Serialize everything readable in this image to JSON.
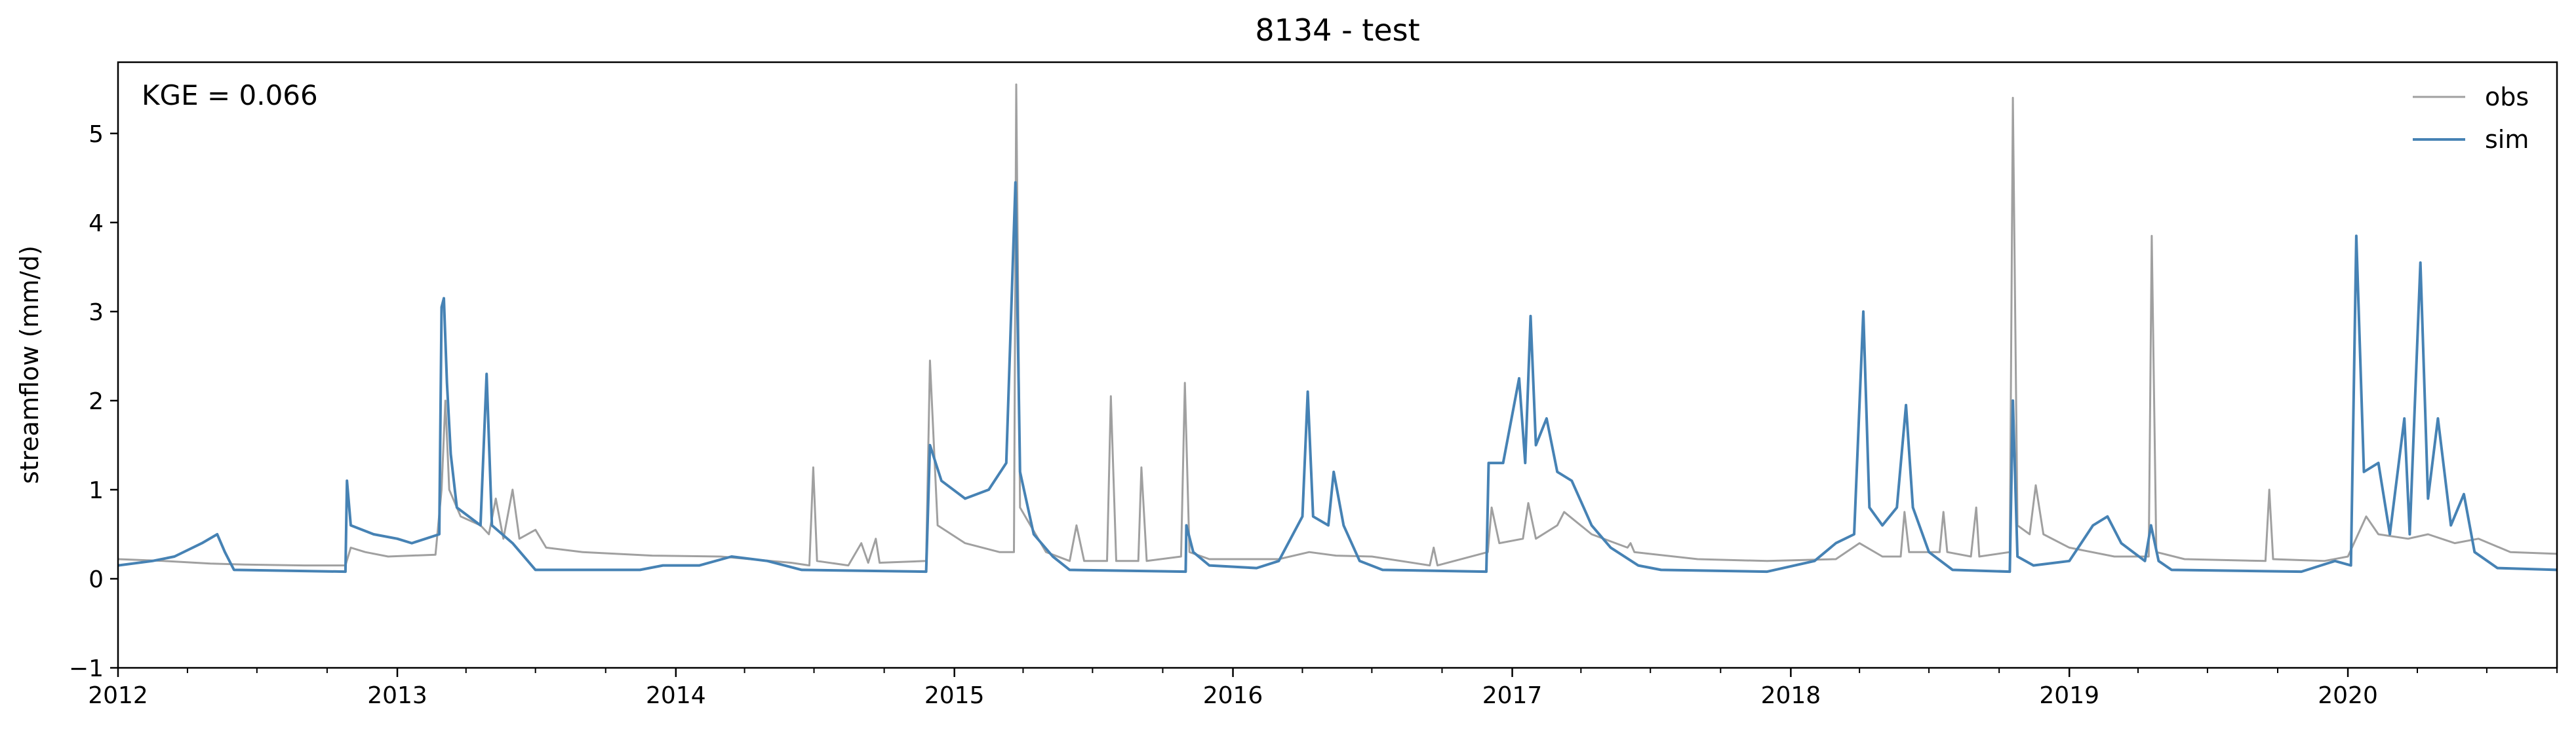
{
  "chart_data": {
    "type": "line",
    "title": "8134 - test",
    "xlabel": "",
    "ylabel": "streamflow (mm/d)",
    "annotation": "KGE = 0.066",
    "xlim": [
      "2012-01-01",
      "2020-10-01"
    ],
    "ylim": [
      -1,
      5.8
    ],
    "x_ticks": [
      "2012",
      "2013",
      "2014",
      "2015",
      "2016",
      "2017",
      "2018",
      "2019",
      "2020"
    ],
    "y_ticks": [
      "−1",
      "0",
      "1",
      "2",
      "3",
      "4",
      "5"
    ],
    "grid": false,
    "legend_position": "top-right",
    "series": [
      {
        "name": "obs",
        "color": "#a0a0a0",
        "points": [
          [
            "2012-01-01",
            0.22
          ],
          [
            "2012-03-01",
            0.2
          ],
          [
            "2012-05-01",
            0.17
          ],
          [
            "2012-06-15",
            0.16
          ],
          [
            "2012-09-01",
            0.15
          ],
          [
            "2012-10-25",
            0.15
          ],
          [
            "2012-11-01",
            0.35
          ],
          [
            "2012-11-20",
            0.3
          ],
          [
            "2012-12-20",
            0.25
          ],
          [
            "2013-02-20",
            0.27
          ],
          [
            "2013-02-28",
            1.0
          ],
          [
            "2013-03-05",
            2.0
          ],
          [
            "2013-03-10",
            1.0
          ],
          [
            "2013-03-25",
            0.7
          ],
          [
            "2013-04-20",
            0.6
          ],
          [
            "2013-05-01",
            0.5
          ],
          [
            "2013-05-10",
            0.9
          ],
          [
            "2013-05-20",
            0.45
          ],
          [
            "2013-06-01",
            1.0
          ],
          [
            "2013-06-10",
            0.45
          ],
          [
            "2013-07-01",
            0.55
          ],
          [
            "2013-07-15",
            0.35
          ],
          [
            "2013-09-01",
            0.3
          ],
          [
            "2013-12-01",
            0.26
          ],
          [
            "2014-03-01",
            0.25
          ],
          [
            "2014-06-01",
            0.18
          ],
          [
            "2014-06-25",
            0.15
          ],
          [
            "2014-06-30",
            1.25
          ],
          [
            "2014-07-05",
            0.2
          ],
          [
            "2014-08-15",
            0.15
          ],
          [
            "2014-09-01",
            0.4
          ],
          [
            "2014-09-10",
            0.18
          ],
          [
            "2014-09-20",
            0.45
          ],
          [
            "2014-09-25",
            0.18
          ],
          [
            "2014-11-25",
            0.2
          ],
          [
            "2014-11-30",
            2.45
          ],
          [
            "2014-12-10",
            0.6
          ],
          [
            "2015-01-15",
            0.4
          ],
          [
            "2015-03-01",
            0.3
          ],
          [
            "2015-03-20",
            0.3
          ],
          [
            "2015-03-23",
            5.55
          ],
          [
            "2015-03-28",
            0.8
          ],
          [
            "2015-05-01",
            0.3
          ],
          [
            "2015-06-01",
            0.2
          ],
          [
            "2015-06-10",
            0.6
          ],
          [
            "2015-06-20",
            0.2
          ],
          [
            "2015-07-20",
            0.2
          ],
          [
            "2015-07-25",
            2.05
          ],
          [
            "2015-08-01",
            0.2
          ],
          [
            "2015-08-30",
            0.2
          ],
          [
            "2015-09-03",
            1.25
          ],
          [
            "2015-09-10",
            0.2
          ],
          [
            "2015-10-25",
            0.25
          ],
          [
            "2015-10-30",
            2.2
          ],
          [
            "2015-11-05",
            0.3
          ],
          [
            "2015-12-01",
            0.22
          ],
          [
            "2016-03-01",
            0.22
          ],
          [
            "2016-04-10",
            0.3
          ],
          [
            "2016-05-15",
            0.26
          ],
          [
            "2016-07-01",
            0.25
          ],
          [
            "2016-09-15",
            0.15
          ],
          [
            "2016-09-20",
            0.35
          ],
          [
            "2016-09-25",
            0.15
          ],
          [
            "2016-11-30",
            0.3
          ],
          [
            "2016-12-05",
            0.8
          ],
          [
            "2016-12-15",
            0.4
          ],
          [
            "2017-01-15",
            0.45
          ],
          [
            "2017-01-22",
            0.85
          ],
          [
            "2017-02-01",
            0.45
          ],
          [
            "2017-03-01",
            0.6
          ],
          [
            "2017-03-10",
            0.75
          ],
          [
            "2017-04-15",
            0.5
          ],
          [
            "2017-06-01",
            0.35
          ],
          [
            "2017-06-05",
            0.4
          ],
          [
            "2017-06-10",
            0.3
          ],
          [
            "2017-09-01",
            0.22
          ],
          [
            "2017-12-01",
            0.2
          ],
          [
            "2018-03-01",
            0.22
          ],
          [
            "2018-04-01",
            0.4
          ],
          [
            "2018-05-01",
            0.25
          ],
          [
            "2018-05-25",
            0.25
          ],
          [
            "2018-05-30",
            0.75
          ],
          [
            "2018-06-05",
            0.3
          ],
          [
            "2018-07-15",
            0.3
          ],
          [
            "2018-07-20",
            0.75
          ],
          [
            "2018-07-25",
            0.3
          ],
          [
            "2018-08-25",
            0.25
          ],
          [
            "2018-09-01",
            0.8
          ],
          [
            "2018-09-05",
            0.25
          ],
          [
            "2018-10-15",
            0.3
          ],
          [
            "2018-10-19",
            5.4
          ],
          [
            "2018-10-25",
            0.6
          ],
          [
            "2018-11-10",
            0.5
          ],
          [
            "2018-11-18",
            1.05
          ],
          [
            "2018-11-28",
            0.5
          ],
          [
            "2019-01-01",
            0.35
          ],
          [
            "2019-03-01",
            0.25
          ],
          [
            "2019-04-15",
            0.25
          ],
          [
            "2019-04-19",
            3.85
          ],
          [
            "2019-04-25",
            0.3
          ],
          [
            "2019-06-01",
            0.22
          ],
          [
            "2019-09-15",
            0.2
          ],
          [
            "2019-09-20",
            1.0
          ],
          [
            "2019-09-25",
            0.22
          ],
          [
            "2019-12-01",
            0.2
          ],
          [
            "2020-01-01",
            0.25
          ],
          [
            "2020-01-25",
            0.7
          ],
          [
            "2020-02-10",
            0.5
          ],
          [
            "2020-03-20",
            0.45
          ],
          [
            "2020-04-15",
            0.5
          ],
          [
            "2020-05-20",
            0.4
          ],
          [
            "2020-06-20",
            0.45
          ],
          [
            "2020-08-01",
            0.3
          ],
          [
            "2020-10-01",
            0.28
          ]
        ]
      },
      {
        "name": "sim",
        "color": "#4682b4",
        "points": [
          [
            "2012-01-01",
            0.15
          ],
          [
            "2012-02-15",
            0.2
          ],
          [
            "2012-03-15",
            0.25
          ],
          [
            "2012-04-20",
            0.4
          ],
          [
            "2012-05-10",
            0.5
          ],
          [
            "2012-05-20",
            0.3
          ],
          [
            "2012-06-01",
            0.1
          ],
          [
            "2012-10-25",
            0.08
          ],
          [
            "2012-10-27",
            1.1
          ],
          [
            "2012-11-01",
            0.6
          ],
          [
            "2012-12-01",
            0.5
          ],
          [
            "2013-01-01",
            0.45
          ],
          [
            "2013-01-20",
            0.4
          ],
          [
            "2013-02-25",
            0.5
          ],
          [
            "2013-02-28",
            3.05
          ],
          [
            "2013-03-03",
            3.15
          ],
          [
            "2013-03-07",
            2.2
          ],
          [
            "2013-03-12",
            1.4
          ],
          [
            "2013-03-20",
            0.8
          ],
          [
            "2013-04-20",
            0.6
          ],
          [
            "2013-04-28",
            2.3
          ],
          [
            "2013-05-05",
            0.6
          ],
          [
            "2013-06-01",
            0.4
          ],
          [
            "2013-07-01",
            0.1
          ],
          [
            "2013-11-15",
            0.1
          ],
          [
            "2013-12-15",
            0.15
          ],
          [
            "2014-02-01",
            0.15
          ],
          [
            "2014-03-15",
            0.25
          ],
          [
            "2014-05-01",
            0.2
          ],
          [
            "2014-06-15",
            0.1
          ],
          [
            "2014-11-25",
            0.08
          ],
          [
            "2014-11-30",
            1.5
          ],
          [
            "2014-12-15",
            1.1
          ],
          [
            "2015-01-15",
            0.9
          ],
          [
            "2015-02-15",
            1.0
          ],
          [
            "2015-03-10",
            1.3
          ],
          [
            "2015-03-22",
            4.45
          ],
          [
            "2015-03-28",
            1.2
          ],
          [
            "2015-04-15",
            0.5
          ],
          [
            "2015-05-10",
            0.25
          ],
          [
            "2015-06-01",
            0.1
          ],
          [
            "2015-10-31",
            0.08
          ],
          [
            "2015-11-01",
            0.6
          ],
          [
            "2015-11-10",
            0.3
          ],
          [
            "2015-12-01",
            0.15
          ],
          [
            "2016-02-01",
            0.12
          ],
          [
            "2016-03-01",
            0.2
          ],
          [
            "2016-04-01",
            0.7
          ],
          [
            "2016-04-08",
            2.1
          ],
          [
            "2016-04-15",
            0.7
          ],
          [
            "2016-05-05",
            0.6
          ],
          [
            "2016-05-12",
            1.2
          ],
          [
            "2016-05-25",
            0.6
          ],
          [
            "2016-06-15",
            0.2
          ],
          [
            "2016-07-15",
            0.1
          ],
          [
            "2016-11-28",
            0.08
          ],
          [
            "2016-12-01",
            1.3
          ],
          [
            "2016-12-20",
            1.3
          ],
          [
            "2017-01-10",
            2.25
          ],
          [
            "2017-01-18",
            1.3
          ],
          [
            "2017-01-25",
            2.95
          ],
          [
            "2017-02-01",
            1.5
          ],
          [
            "2017-02-15",
            1.8
          ],
          [
            "2017-03-01",
            1.2
          ],
          [
            "2017-03-20",
            1.1
          ],
          [
            "2017-04-15",
            0.6
          ],
          [
            "2017-05-10",
            0.35
          ],
          [
            "2017-06-15",
            0.15
          ],
          [
            "2017-07-15",
            0.1
          ],
          [
            "2017-12-01",
            0.08
          ],
          [
            "2018-02-01",
            0.2
          ],
          [
            "2018-03-01",
            0.4
          ],
          [
            "2018-03-25",
            0.5
          ],
          [
            "2018-04-06",
            3.0
          ],
          [
            "2018-04-14",
            0.8
          ],
          [
            "2018-05-01",
            0.6
          ],
          [
            "2018-05-20",
            0.8
          ],
          [
            "2018-06-01",
            1.95
          ],
          [
            "2018-06-10",
            0.8
          ],
          [
            "2018-07-01",
            0.3
          ],
          [
            "2018-08-01",
            0.1
          ],
          [
            "2018-10-15",
            0.08
          ],
          [
            "2018-10-19",
            2.0
          ],
          [
            "2018-10-25",
            0.25
          ],
          [
            "2018-11-15",
            0.15
          ],
          [
            "2019-01-01",
            0.2
          ],
          [
            "2019-02-01",
            0.6
          ],
          [
            "2019-02-20",
            0.7
          ],
          [
            "2019-03-10",
            0.4
          ],
          [
            "2019-04-10",
            0.2
          ],
          [
            "2019-04-18",
            0.6
          ],
          [
            "2019-04-28",
            0.2
          ],
          [
            "2019-05-15",
            0.1
          ],
          [
            "2019-11-01",
            0.08
          ],
          [
            "2019-12-15",
            0.2
          ],
          [
            "2020-01-05",
            0.15
          ],
          [
            "2020-01-12",
            3.85
          ],
          [
            "2020-01-22",
            1.2
          ],
          [
            "2020-02-10",
            1.3
          ],
          [
            "2020-02-25",
            0.5
          ],
          [
            "2020-03-15",
            1.8
          ],
          [
            "2020-03-22",
            0.5
          ],
          [
            "2020-04-05",
            3.55
          ],
          [
            "2020-04-15",
            0.9
          ],
          [
            "2020-04-28",
            1.8
          ],
          [
            "2020-05-15",
            0.6
          ],
          [
            "2020-06-01",
            0.95
          ],
          [
            "2020-06-15",
            0.3
          ],
          [
            "2020-07-15",
            0.12
          ],
          [
            "2020-10-01",
            0.1
          ]
        ]
      }
    ]
  }
}
